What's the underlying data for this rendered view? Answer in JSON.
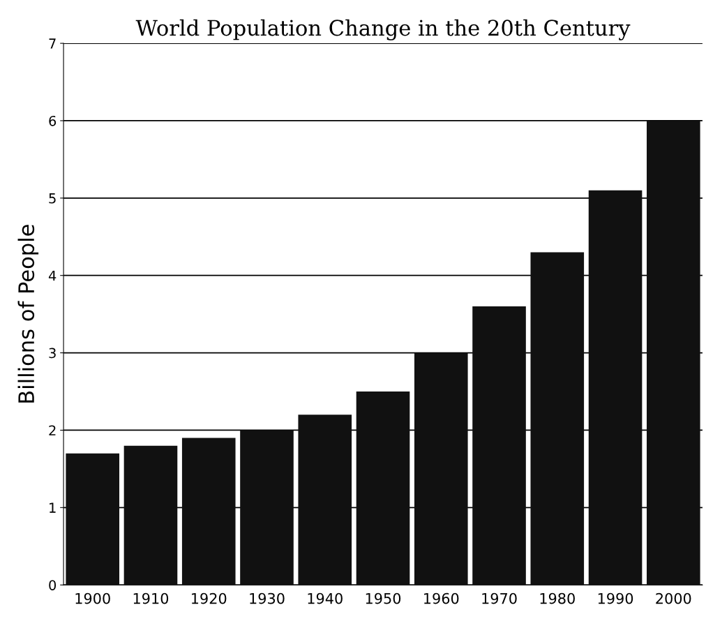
{
  "chart_data": {
    "type": "bar",
    "title": "World Population Change in the 20th Century",
    "ylabel": "Billions of People",
    "categories": [
      "1900",
      "1910",
      "1920",
      "1930",
      "1940",
      "1950",
      "1960",
      "1970",
      "1980",
      "1990",
      "2000"
    ],
    "values": [
      1.7,
      1.8,
      1.9,
      2.0,
      2.2,
      2.5,
      3.0,
      3.6,
      4.3,
      5.1,
      6.0
    ],
    "color": "#111111",
    "ylim": [
      0,
      7
    ],
    "yticks": [
      0,
      1,
      2,
      3,
      4,
      5,
      6,
      7
    ],
    "grid": "y",
    "legend": false
  }
}
